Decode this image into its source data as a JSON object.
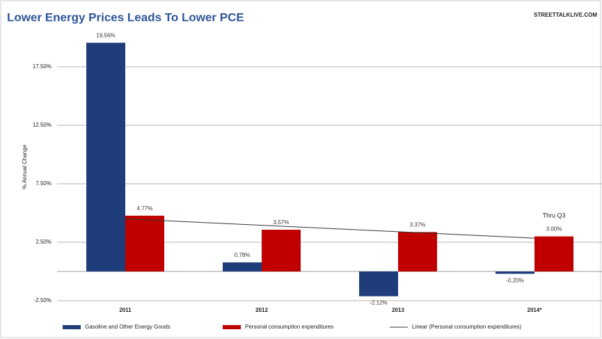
{
  "chart_data": {
    "type": "bar",
    "title": "Lower Energy Prices Leads To Lower PCE",
    "source": "STREETTALKLIVE.COM",
    "y_label": "% Annual Change",
    "annotation": "Thru Q3",
    "categories": [
      "2011",
      "2012",
      "2013",
      "2014*"
    ],
    "series": [
      {
        "name": "Gasoline and Other Energy Goods",
        "color": "#1f3d7a",
        "values": [
          19.56,
          0.78,
          -2.12,
          -0.2
        ],
        "value_labels": [
          "19.56%",
          "0.78%",
          "-2.12%",
          "-0.20%"
        ]
      },
      {
        "name": "Personal consumption expenditures",
        "color": "#c00000",
        "values": [
          4.77,
          3.57,
          3.37,
          3.0
        ],
        "value_labels": [
          "4.77%",
          "3.57%",
          "3.37%",
          "3.00%"
        ]
      },
      {
        "name": "Linear (Personal consumption expenditures)",
        "type": "line",
        "color": "#333333",
        "values": [
          4.5,
          3.95,
          3.4,
          2.85
        ]
      }
    ],
    "ylim": [
      -2.5,
      22.5
    ],
    "yticks": [
      {
        "value": -2.5,
        "label": "-2.50%"
      },
      {
        "value": 2.5,
        "label": "2.50%"
      },
      {
        "value": 7.5,
        "label": "7.50%"
      },
      {
        "value": 12.5,
        "label": "12.50%"
      },
      {
        "value": 17.5,
        "label": "17.50%"
      }
    ],
    "grid": true
  }
}
